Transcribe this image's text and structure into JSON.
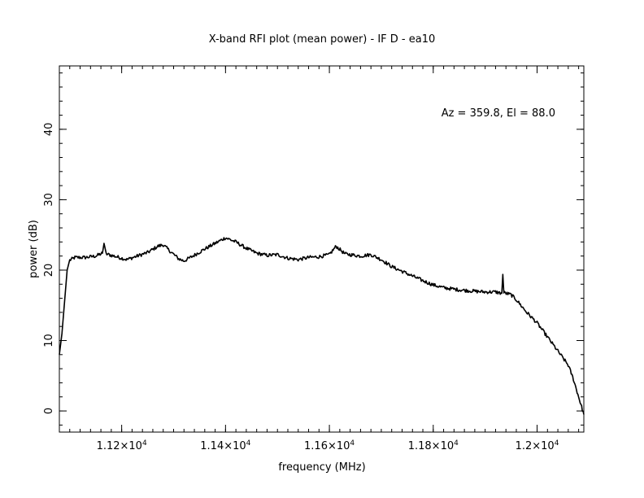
{
  "chart_data": {
    "type": "line",
    "title": "X-band RFI plot (mean power) - IF D - ea10",
    "annotation": "Az = 359.8, El = 88.0",
    "xlabel": "frequency (MHz)",
    "ylabel": "power (dB)",
    "xlim": [
      11080,
      12090
    ],
    "ylim": [
      -3,
      49
    ],
    "x_ticks": [
      {
        "value": 11200,
        "label_base": "1.12×10",
        "label_exp": "4"
      },
      {
        "value": 11400,
        "label_base": "1.14×10",
        "label_exp": "4"
      },
      {
        "value": 11600,
        "label_base": "1.16×10",
        "label_exp": "4"
      },
      {
        "value": 11800,
        "label_base": "1.18×10",
        "label_exp": "4"
      },
      {
        "value": 12000,
        "label_base": "1.2×10",
        "label_exp": "4"
      }
    ],
    "x_minor_step": 20,
    "y_ticks": [
      0,
      10,
      20,
      30,
      40
    ],
    "y_minor_step": 2,
    "grid": false,
    "line_color": "#000000",
    "series": [
      {
        "points": [
          [
            11080,
            8.0
          ],
          [
            11085,
            11.0
          ],
          [
            11090,
            15.5
          ],
          [
            11095,
            20.0
          ],
          [
            11100,
            21.4
          ],
          [
            11110,
            21.8
          ],
          [
            11130,
            21.8
          ],
          [
            11150,
            22.0
          ],
          [
            11163,
            22.4
          ],
          [
            11166,
            23.8
          ],
          [
            11170,
            22.3
          ],
          [
            11190,
            21.9
          ],
          [
            11210,
            21.5
          ],
          [
            11230,
            22.0
          ],
          [
            11250,
            22.5
          ],
          [
            11270,
            23.4
          ],
          [
            11280,
            23.6
          ],
          [
            11290,
            22.9
          ],
          [
            11310,
            21.6
          ],
          [
            11320,
            21.3
          ],
          [
            11335,
            21.9
          ],
          [
            11360,
            23.0
          ],
          [
            11380,
            23.8
          ],
          [
            11400,
            24.6
          ],
          [
            11420,
            24.0
          ],
          [
            11440,
            23.1
          ],
          [
            11460,
            22.4
          ],
          [
            11480,
            22.1
          ],
          [
            11500,
            22.2
          ],
          [
            11520,
            21.7
          ],
          [
            11540,
            21.5
          ],
          [
            11560,
            21.8
          ],
          [
            11580,
            21.9
          ],
          [
            11600,
            22.2
          ],
          [
            11613,
            23.4
          ],
          [
            11630,
            22.3
          ],
          [
            11660,
            22.0
          ],
          [
            11680,
            22.2
          ],
          [
            11700,
            21.5
          ],
          [
            11720,
            20.5
          ],
          [
            11750,
            19.5
          ],
          [
            11780,
            18.5
          ],
          [
            11800,
            17.9
          ],
          [
            11820,
            17.5
          ],
          [
            11850,
            17.2
          ],
          [
            11880,
            17.0
          ],
          [
            11900,
            16.9
          ],
          [
            11920,
            16.9
          ],
          [
            11932,
            16.7
          ],
          [
            11934,
            19.4
          ],
          [
            11936,
            16.8
          ],
          [
            11950,
            16.5
          ],
          [
            11960,
            15.8
          ],
          [
            11980,
            14.0
          ],
          [
            12000,
            12.5
          ],
          [
            12020,
            10.5
          ],
          [
            12040,
            8.5
          ],
          [
            12060,
            6.5
          ],
          [
            12070,
            4.5
          ],
          [
            12080,
            2.0
          ],
          [
            12090,
            -0.5
          ]
        ]
      }
    ]
  }
}
